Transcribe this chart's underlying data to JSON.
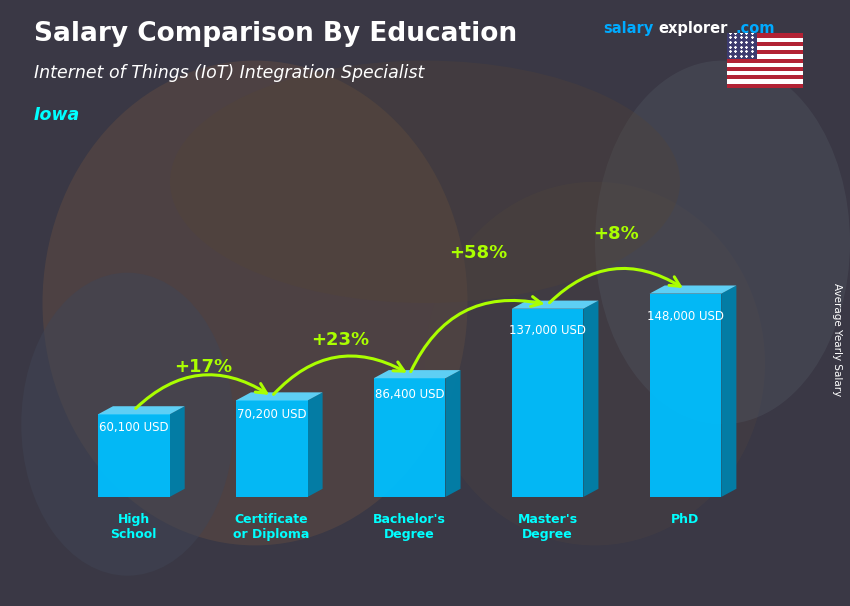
{
  "title": "Salary Comparison By Education",
  "subtitle": "Internet of Things (IoT) Integration Specialist",
  "location": "Iowa",
  "ylabel": "Average Yearly Salary",
  "categories": [
    "High\nSchool",
    "Certificate\nor Diploma",
    "Bachelor's\nDegree",
    "Master's\nDegree",
    "PhD"
  ],
  "values": [
    60100,
    70200,
    86400,
    137000,
    148000
  ],
  "value_labels": [
    "60,100 USD",
    "70,200 USD",
    "86,400 USD",
    "137,000 USD",
    "148,000 USD"
  ],
  "pct_labels": [
    "+17%",
    "+23%",
    "+58%",
    "+8%"
  ],
  "bar_color_face": "#00BFFF",
  "bar_color_right": "#0080AA",
  "bar_color_top": "#60D8FF",
  "title_color": "#FFFFFF",
  "subtitle_color": "#FFFFFF",
  "location_color": "#00FFFF",
  "value_label_color": "#FFFFFF",
  "pct_label_color": "#AAFF00",
  "ylabel_color": "#FFFFFF",
  "xtick_color": "#00FFFF",
  "watermark_salary_color": "#00AAFF",
  "watermark_explorer_color": "#FFFFFF",
  "watermark_com_color": "#00AAFF",
  "bg_dark": "#404055",
  "figsize": [
    8.5,
    6.06
  ],
  "dpi": 100
}
